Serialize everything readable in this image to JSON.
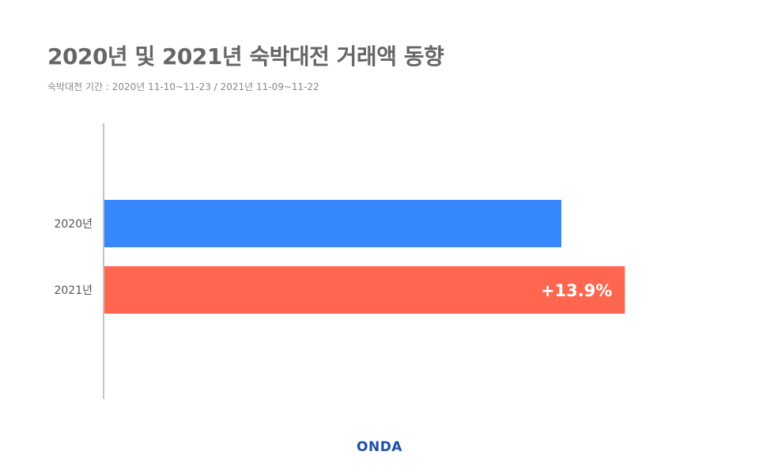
{
  "title": "2020년 및 2021년 숙박대전 거래액 동향",
  "subtitle": "숙박대전 기간 : 2020년 11-10~11-23 / 2021년 11-09~11-22",
  "brand": {
    "logo_text": "ONDA",
    "color": "#1f4fa8"
  },
  "chart_data": {
    "type": "bar",
    "orientation": "horizontal",
    "categories": [
      "2020년",
      "2021년"
    ],
    "values": [
      100,
      113.9
    ],
    "colors": [
      "#3787ff",
      "#ff6650"
    ],
    "data_labels": [
      "",
      "+13.9%"
    ],
    "xlim": [
      0,
      125
    ],
    "grid": false,
    "legend": "none"
  }
}
